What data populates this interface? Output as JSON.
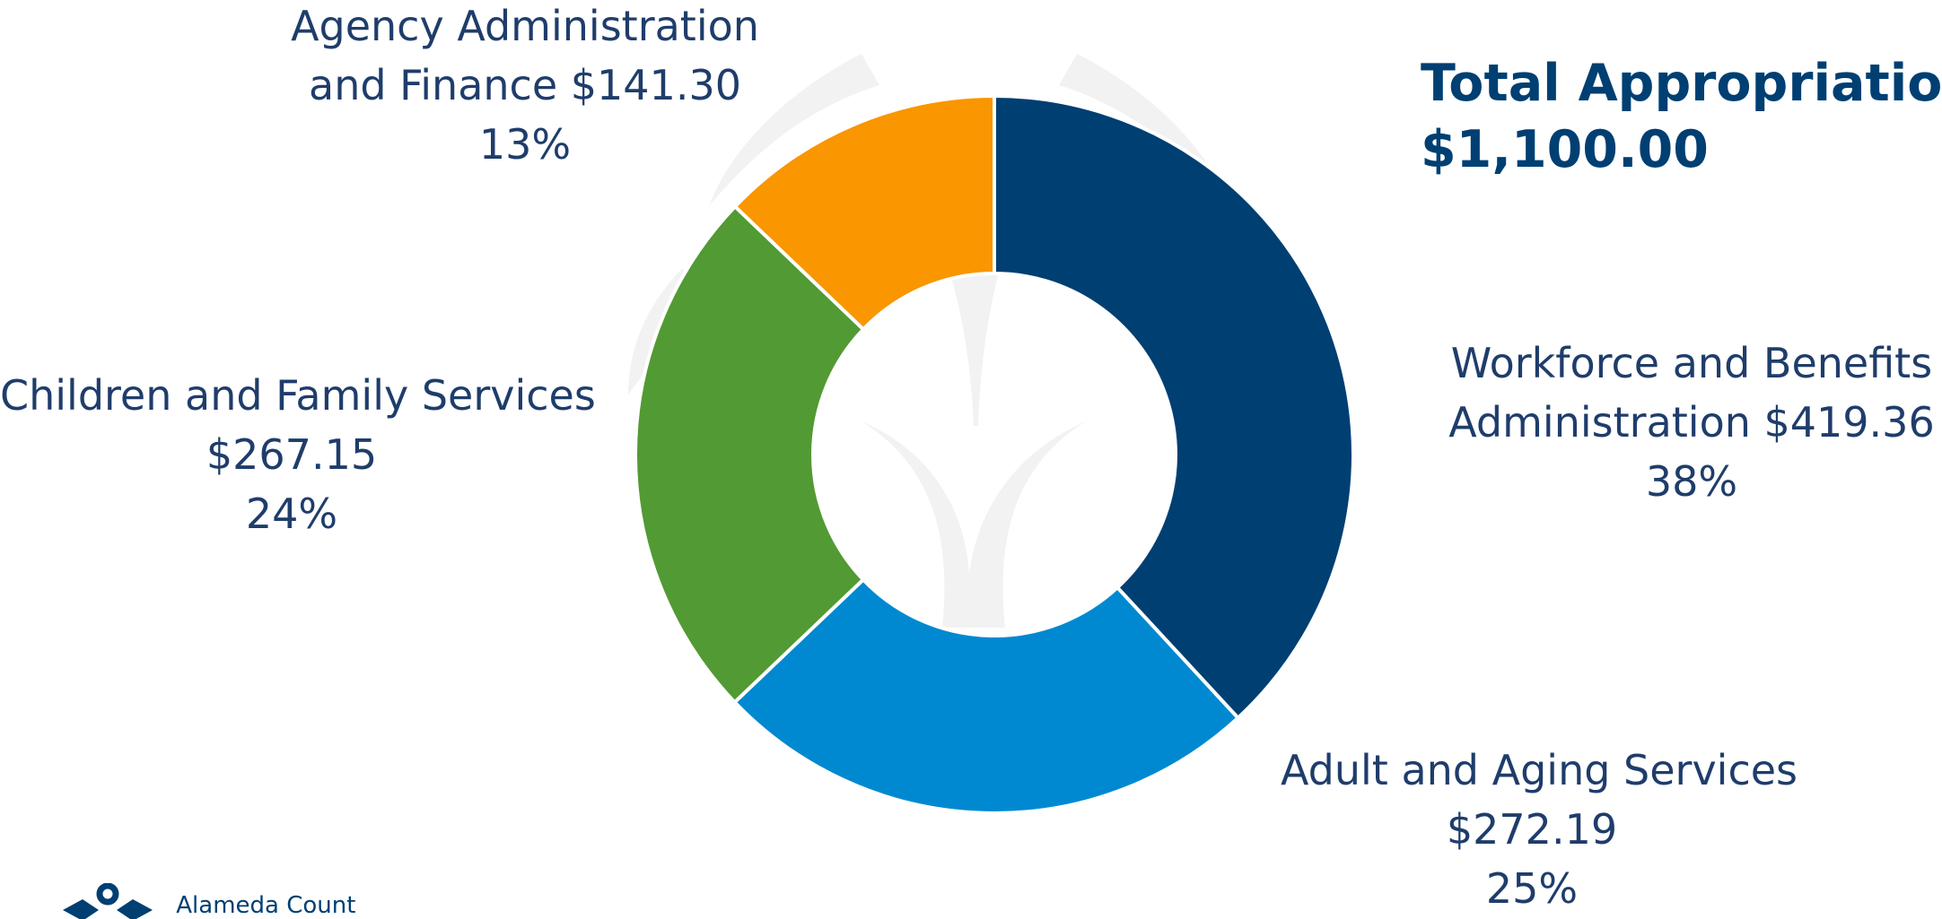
{
  "chart_data": {
    "type": "pie",
    "variant": "donut",
    "title": "Total Appropriations",
    "total_label": "$1,100.00",
    "slices": [
      {
        "name": "Workforce and Benefits Administration",
        "value": 419.36,
        "value_label": "$419.36",
        "percent_label": "38%",
        "color": "#003f72"
      },
      {
        "name": "Adult and Aging Services",
        "value": 272.19,
        "value_label": "$272.19",
        "percent_label": "25%",
        "color": "#0089d0"
      },
      {
        "name": "Children and Family Services",
        "value": 267.15,
        "value_label": "$267.15",
        "percent_label": "24%",
        "color": "#529a33"
      },
      {
        "name": "Agency Administration and Finance",
        "value": 141.3,
        "value_label": "$141.30",
        "percent_label": "13%",
        "color": "#f99600"
      }
    ]
  },
  "labels": {
    "workforce": {
      "line1": "Workforce and Benefits",
      "line2": "Administration $419.36",
      "line3": "38%"
    },
    "adult": {
      "line1": "Adult and Aging Services",
      "line2": "$272.19",
      "line3": "25%"
    },
    "children": {
      "line1": "Children and Family Services",
      "line2": "$267.15",
      "line3": "24%"
    },
    "agency": {
      "line1": "Agency Administration",
      "line2": "and Finance $141.30",
      "line3": "13%"
    }
  },
  "title": {
    "line1": "Total Appropriations",
    "line2": "$1,100.00"
  },
  "logo": {
    "text": "Alameda Count"
  },
  "colors": {
    "text": "#1f3d6b",
    "title": "#003f72",
    "watermark": "#f1f1f1"
  }
}
